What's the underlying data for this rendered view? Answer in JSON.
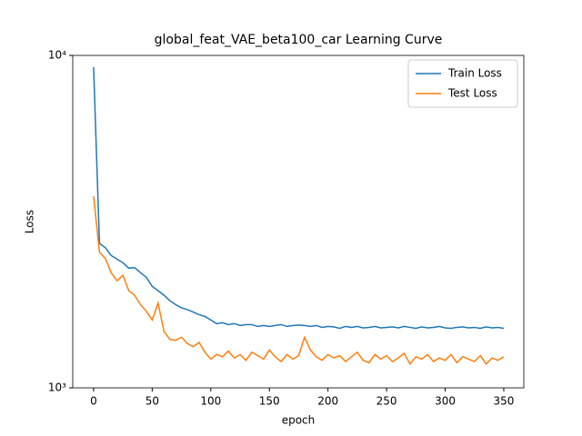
{
  "chart_data": {
    "type": "line",
    "title": "global_feat_VAE_beta100_car Learning Curve",
    "x_label": "epoch",
    "y_label": "Loss",
    "x": [
      0,
      5,
      10,
      15,
      20,
      25,
      30,
      35,
      40,
      45,
      50,
      55,
      60,
      65,
      70,
      75,
      80,
      85,
      90,
      95,
      100,
      105,
      110,
      115,
      120,
      125,
      130,
      135,
      140,
      145,
      150,
      155,
      160,
      165,
      170,
      175,
      180,
      185,
      190,
      195,
      200,
      205,
      210,
      215,
      220,
      225,
      230,
      235,
      240,
      245,
      250,
      255,
      260,
      265,
      270,
      275,
      280,
      285,
      290,
      295,
      300,
      305,
      310,
      315,
      320,
      325,
      330,
      335,
      340,
      345,
      350
    ],
    "series": [
      {
        "name": "Train Loss",
        "color": "#1f77b4",
        "values": [
          9214,
          2720,
          2640,
          2500,
          2440,
          2380,
          2290,
          2300,
          2220,
          2150,
          2020,
          1960,
          1900,
          1830,
          1780,
          1740,
          1720,
          1690,
          1660,
          1640,
          1600,
          1560,
          1570,
          1550,
          1560,
          1540,
          1550,
          1550,
          1530,
          1540,
          1530,
          1540,
          1550,
          1530,
          1540,
          1545,
          1540,
          1530,
          1540,
          1520,
          1530,
          1525,
          1510,
          1530,
          1520,
          1530,
          1515,
          1520,
          1530,
          1515,
          1520,
          1525,
          1515,
          1530,
          1520,
          1510,
          1525,
          1515,
          1520,
          1530,
          1515,
          1510,
          1520,
          1525,
          1515,
          1520,
          1510,
          1525,
          1515,
          1520,
          1510
        ]
      },
      {
        "name": "Test Loss",
        "color": "#ff7f0e",
        "values": [
          3770,
          2560,
          2450,
          2220,
          2100,
          2180,
          1960,
          1900,
          1780,
          1700,
          1600,
          1800,
          1480,
          1400,
          1390,
          1420,
          1360,
          1330,
          1370,
          1280,
          1220,
          1260,
          1240,
          1290,
          1230,
          1260,
          1210,
          1280,
          1250,
          1220,
          1300,
          1240,
          1200,
          1260,
          1220,
          1250,
          1420,
          1300,
          1240,
          1210,
          1260,
          1230,
          1250,
          1200,
          1240,
          1280,
          1210,
          1190,
          1260,
          1220,
          1250,
          1200,
          1230,
          1270,
          1180,
          1240,
          1220,
          1260,
          1200,
          1230,
          1210,
          1260,
          1190,
          1240,
          1220,
          1200,
          1250,
          1180,
          1230,
          1210,
          1240
        ]
      }
    ],
    "xlim": [
      -17.8,
      367.1
    ],
    "xticks": [
      0,
      50,
      100,
      150,
      200,
      250,
      300,
      350
    ],
    "ylim": [
      1000,
      10000
    ],
    "yscale": "log",
    "yticks": [
      {
        "value": 1000,
        "label": "10³"
      },
      {
        "value": 10000,
        "label": "10⁴"
      }
    ],
    "legend": "upper right"
  }
}
